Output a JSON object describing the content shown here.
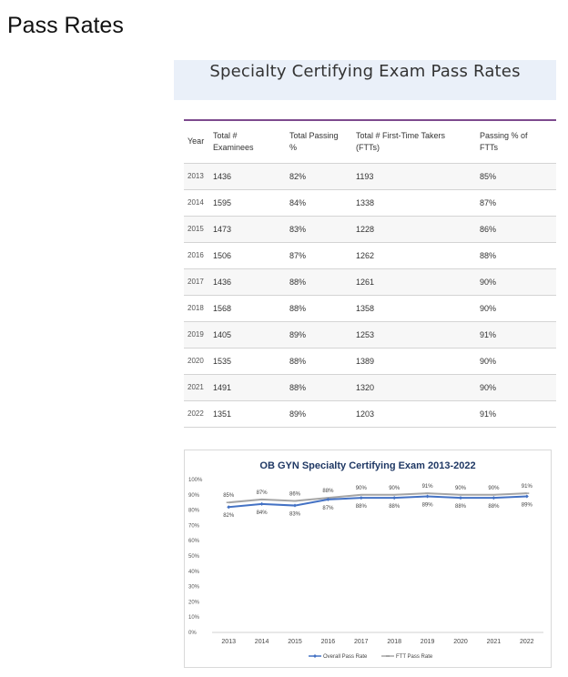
{
  "page": {
    "title": "Pass Rates"
  },
  "banner": {
    "title": "Specialty Certifying Exam Pass Rates"
  },
  "table": {
    "headers": {
      "year": "Year",
      "examinees": [
        "Total #",
        "Examinees"
      ],
      "passing": [
        "Total Passing",
        "%"
      ],
      "ftt": [
        "Total # First-Time Takers",
        "(FTTs)"
      ],
      "ftt_pct": [
        "Passing % of",
        "FTTs"
      ]
    },
    "rows": [
      {
        "year": "2013",
        "examinees": "1436",
        "passing": "82%",
        "ftt": "1193",
        "ftt_pct": "85%"
      },
      {
        "year": "2014",
        "examinees": "1595",
        "passing": "84%",
        "ftt": "1338",
        "ftt_pct": "87%"
      },
      {
        "year": "2015",
        "examinees": "1473",
        "passing": "83%",
        "ftt": "1228",
        "ftt_pct": "86%"
      },
      {
        "year": "2016",
        "examinees": "1506",
        "passing": "87%",
        "ftt": "1262",
        "ftt_pct": "88%"
      },
      {
        "year": "2017",
        "examinees": "1436",
        "passing": "88%",
        "ftt": "1261",
        "ftt_pct": "90%"
      },
      {
        "year": "2018",
        "examinees": "1568",
        "passing": "88%",
        "ftt": "1358",
        "ftt_pct": "90%"
      },
      {
        "year": "2019",
        "examinees": "1405",
        "passing": "89%",
        "ftt": "1253",
        "ftt_pct": "91%"
      },
      {
        "year": "2020",
        "examinees": "1535",
        "passing": "88%",
        "ftt": "1389",
        "ftt_pct": "90%"
      },
      {
        "year": "2021",
        "examinees": "1491",
        "passing": "88%",
        "ftt": "1320",
        "ftt_pct": "90%"
      },
      {
        "year": "2022",
        "examinees": "1351",
        "passing": "89%",
        "ftt": "1203",
        "ftt_pct": "91%"
      }
    ]
  },
  "chart_data": {
    "type": "line",
    "title": "OB GYN Specialty Certifying Exam 2013-2022",
    "xlabel": "",
    "ylabel": "",
    "x": [
      "2013",
      "2014",
      "2015",
      "2016",
      "2017",
      "2018",
      "2019",
      "2020",
      "2021",
      "2022"
    ],
    "ylim": [
      0,
      100
    ],
    "yticks": [
      "0%",
      "10%",
      "20%",
      "30%",
      "40%",
      "50%",
      "60%",
      "70%",
      "80%",
      "90%",
      "100%"
    ],
    "grid": false,
    "legend": "bottom",
    "series": [
      {
        "name": "Overall Pass Rate",
        "color": "#4472c4",
        "values": [
          82,
          84,
          83,
          87,
          88,
          88,
          89,
          88,
          88,
          89
        ],
        "labels": [
          "82%",
          "84%",
          "83%",
          "87%",
          "88%",
          "88%",
          "89%",
          "88%",
          "88%",
          "89%"
        ],
        "label_position": "below"
      },
      {
        "name": "FTT Pass Rate",
        "color": "#a5a5a5",
        "values": [
          85,
          87,
          86,
          88,
          90,
          90,
          91,
          90,
          90,
          91
        ],
        "labels": [
          "85%",
          "87%",
          "86%",
          "88%",
          "90%",
          "90%",
          "91%",
          "90%",
          "90%",
          "91%"
        ],
        "label_position": "above"
      }
    ]
  }
}
